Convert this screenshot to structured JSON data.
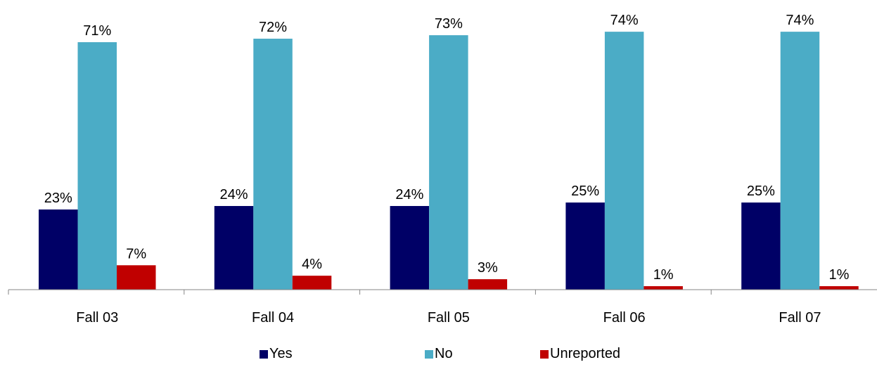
{
  "chart_data": {
    "type": "bar",
    "categories": [
      "Fall 03",
      "Fall 04",
      "Fall 05",
      "Fall 06",
      "Fall 07"
    ],
    "series": [
      {
        "name": "Yes",
        "values": [
          23,
          24,
          24,
          25,
          25
        ],
        "labels": [
          "23%",
          "24%",
          "24%",
          "25%",
          "25%"
        ],
        "color": "#000066"
      },
      {
        "name": "No",
        "values": [
          71,
          72,
          73,
          74,
          74
        ],
        "labels": [
          "71%",
          "72%",
          "73%",
          "74%",
          "74%"
        ],
        "color": "#4BACC6"
      },
      {
        "name": "Unreported",
        "values": [
          7,
          4,
          3,
          1,
          1
        ],
        "labels": [
          "7%",
          "4%",
          "3%",
          "1%",
          "1%"
        ],
        "color": "#C00000"
      }
    ],
    "title": "",
    "xlabel": "",
    "ylabel": "",
    "ylim": [
      0,
      80
    ],
    "grid": false,
    "legend_position": "bottom"
  }
}
